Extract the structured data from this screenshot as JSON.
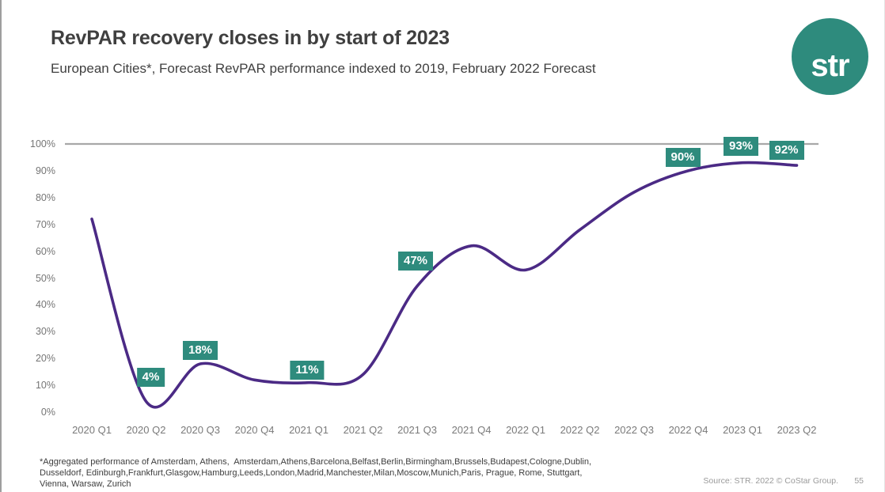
{
  "header": {
    "title": "RevPAR recovery closes in by start of 2023",
    "subtitle": "European Cities*, Forecast RevPAR performance indexed to 2019, February 2022 Forecast",
    "logo_text": "str"
  },
  "chart_data": {
    "type": "line",
    "title": "Forecast RevPAR performance indexed to 2019",
    "categories": [
      "2020 Q1",
      "2020 Q2",
      "2020 Q3",
      "2020 Q4",
      "2021 Q1",
      "2021 Q2",
      "2021 Q3",
      "2021 Q4",
      "2022 Q1",
      "2022 Q2",
      "2022 Q3",
      "2022 Q4",
      "2023 Q1",
      "2023 Q2"
    ],
    "values": [
      72,
      4,
      18,
      12,
      11,
      14,
      47,
      62,
      53,
      68,
      82,
      90,
      93,
      92
    ],
    "labeled_points": [
      {
        "category": "2020 Q2",
        "text": "4%",
        "gap": 18,
        "dx": 6
      },
      {
        "category": "2020 Q3",
        "text": "18%",
        "gap": 5,
        "dx": 0
      },
      {
        "category": "2021 Q1",
        "text": "11%",
        "gap": 4,
        "dx": -2
      },
      {
        "category": "2021 Q3",
        "text": "47%",
        "gap": 20,
        "dx": -2
      },
      {
        "category": "2022 Q4",
        "text": "90%",
        "gap": 5,
        "dx": -7
      },
      {
        "category": "2023 Q1",
        "text": "93%",
        "gap": 9,
        "dx": -2
      },
      {
        "category": "2023 Q2",
        "text": "92%",
        "gap": 7,
        "dx": -13
      }
    ],
    "xlabel": "",
    "ylabel": "",
    "ylim": [
      0,
      100
    ],
    "y_tick_step": 10,
    "y_tick_suffix": "%",
    "grid": "single horizontal reference line at 100%",
    "legend": "none",
    "line_color": "#4b2a85",
    "reference_line_color": "#a8a8a8",
    "label_bg_color": "#2e8b7d",
    "smoothing": "spline"
  },
  "footer": {
    "footnote_line1": "*Aggregated performance of Amsterdam, Athens,  Amsterdam,Athens,Barcelona,Belfast,Berlin,Birmingham,Brussels,Budapest,Cologne,Dublin,",
    "footnote_line2": "Dusseldorf, Edinburgh,Frankfurt,Glasgow,Hamburg,Leeds,London,Madrid,Manchester,Milan,Moscow,Munich,Paris, Prague, Rome, Stuttgart,",
    "footnote_line3": "Vienna, Warsaw, Zurich",
    "source": "Source: STR. 2022 © CoStar Group.",
    "page_number": "55"
  }
}
